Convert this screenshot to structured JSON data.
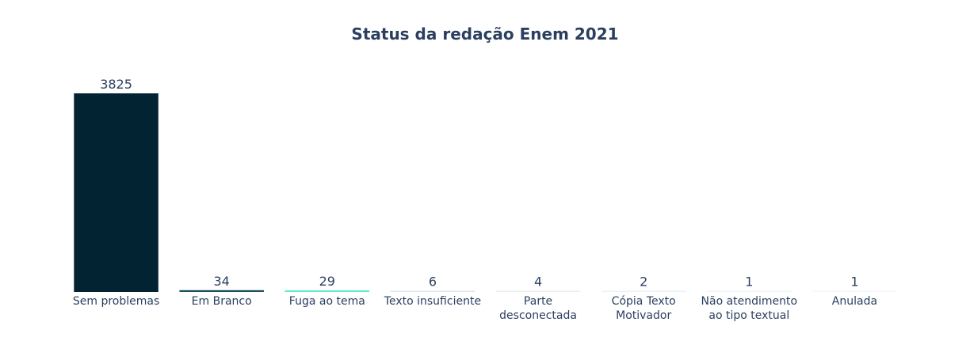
{
  "chart_data": {
    "type": "bar",
    "title": "Status da redação Enem 2021",
    "categories": [
      "Sem problemas",
      "Em Branco",
      "Fuga ao tema",
      "Texto insuficiente",
      "Parte desconectada",
      "Cópia Texto Motivador",
      "Não atendimento ao tipo textual",
      "Anulada"
    ],
    "category_lines": [
      [
        "Sem problemas"
      ],
      [
        "Em Branco"
      ],
      [
        "Fuga ao tema"
      ],
      [
        "Texto insuficiente"
      ],
      [
        "Parte",
        "desconectada"
      ],
      [
        "Cópia Texto",
        "Motivador"
      ],
      [
        "Não atendimento",
        "ao tipo textual"
      ],
      [
        "Anulada"
      ]
    ],
    "values": [
      3825,
      34,
      29,
      6,
      4,
      2,
      1,
      1
    ],
    "colors": [
      "#022331",
      "#1b4f5e",
      "#5ce8d1",
      "#e0e8ec",
      "#eaf0f2",
      "#edf2f4",
      "#f2f5f7",
      "#f5f7f8"
    ],
    "xlabel": "",
    "ylabel": "",
    "ylim": [
      0,
      3825
    ],
    "grid": false,
    "legend": "none"
  }
}
